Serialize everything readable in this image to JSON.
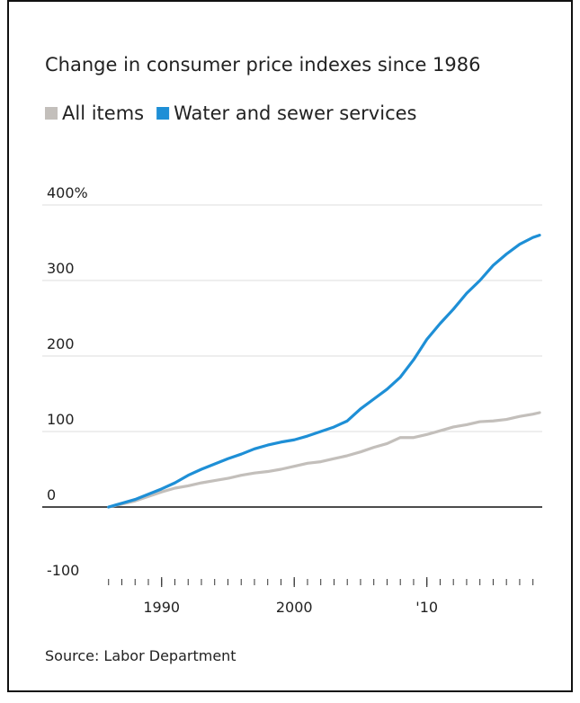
{
  "chart_data": {
    "type": "line",
    "title": "Change in consumer price indexes since 1986",
    "source": "Source: Labor Department",
    "x": [
      1986,
      1987,
      1988,
      1989,
      1990,
      1991,
      1992,
      1993,
      1994,
      1995,
      1996,
      1997,
      1998,
      1999,
      2000,
      2001,
      2002,
      2003,
      2004,
      2005,
      2006,
      2007,
      2008,
      2009,
      2010,
      2011,
      2012,
      2013,
      2014,
      2015,
      2016,
      2017,
      2018,
      2018.5
    ],
    "series": [
      {
        "name": "All items",
        "color": "#c3bfbb",
        "values": [
          0,
          4,
          8,
          14,
          20,
          25,
          28,
          32,
          35,
          38,
          42,
          45,
          47,
          50,
          54,
          58,
          60,
          64,
          68,
          73,
          79,
          84,
          92,
          92,
          96,
          101,
          106,
          109,
          113,
          114,
          116,
          120,
          123,
          125
        ]
      },
      {
        "name": "Water and sewer services",
        "color": "#1e8fd6",
        "values": [
          0,
          5,
          10,
          17,
          24,
          32,
          42,
          50,
          57,
          64,
          70,
          77,
          82,
          86,
          89,
          94,
          100,
          106,
          114,
          130,
          143,
          156,
          172,
          195,
          222,
          243,
          262,
          283,
          300,
          320,
          335,
          348,
          357,
          360
        ]
      }
    ],
    "xlim": [
      1981,
      2018.7
    ],
    "xticks": [
      1990,
      2000,
      {
        "value": 2010,
        "label": "'10"
      }
    ],
    "xticks_minor": [
      1986,
      1987,
      1988,
      1989,
      1990,
      1991,
      1992,
      1993,
      1994,
      1995,
      1996,
      1997,
      1998,
      1999,
      2000,
      2001,
      2002,
      2003,
      2004,
      2005,
      2006,
      2007,
      2008,
      2009,
      2010,
      2011,
      2012,
      2013,
      2014,
      2015,
      2016,
      2017,
      2018
    ],
    "ylim": [
      -100,
      400
    ],
    "yticks": [
      {
        "value": 400,
        "label": "400%"
      },
      300,
      200,
      100,
      0,
      -100
    ],
    "grid": true
  }
}
